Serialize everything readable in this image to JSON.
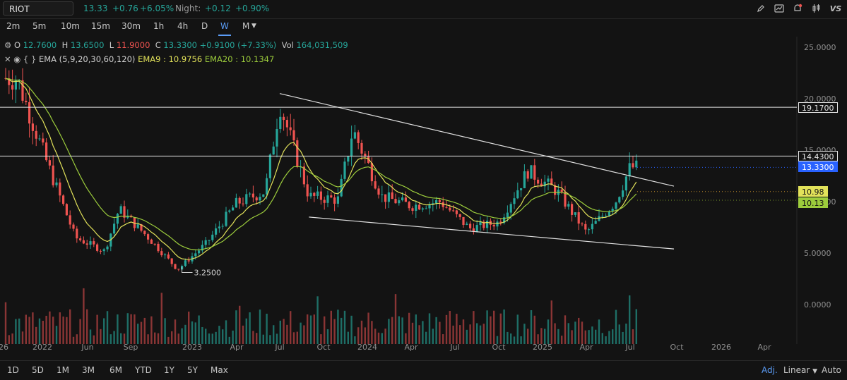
{
  "toolbar": {
    "symbol": "RIOT",
    "last": "13.33",
    "change": "+0.76",
    "change_pct": "+6.05%",
    "night_label": "Night:",
    "night_change": "+0.12",
    "night_pct": "+0.90%",
    "icons": [
      "pencil-icon",
      "chart-image-icon",
      "alert-bell-icon",
      "candles-icon",
      "vs-compare-icon"
    ],
    "vs_label": "VS"
  },
  "intervals": {
    "items": [
      "2m",
      "5m",
      "10m",
      "15m",
      "30m",
      "1h",
      "4h",
      "D",
      "W",
      "M"
    ],
    "selected": "W"
  },
  "legend": {
    "o_label": "O",
    "o": "12.7600",
    "h_label": "H",
    "h": "13.6500",
    "l_label": "L",
    "l": "11.9000",
    "c_label": "C",
    "c": "13.3300",
    "chg": "+0.9100 (+7.33%)",
    "vol_label": "Vol",
    "vol": "164,031,509",
    "ema_name": "EMA (5,9,20,30,60,120)",
    "ema9": "EMA9 : 10.9756",
    "ema20": "EMA20 : 10.1347"
  },
  "colors": {
    "up": "#26a69a",
    "down": "#ef5350",
    "ema9": "#e2e25a",
    "ema20": "#9ccc3c",
    "last_tag": "#2962ff",
    "bg": "#131313"
  },
  "price_axis": [
    "25.0000",
    "20.0000",
    "15.0000",
    "10.0000",
    "5.0000",
    "0.0000"
  ],
  "price_tags": {
    "line1": "19.1700",
    "line2": "14.4300",
    "last": "13.3300",
    "ema9": "10.98",
    "ema20": "10.13"
  },
  "low_marker": "3.2500",
  "time_axis": [
    "26",
    "2022",
    "Jun",
    "Sep",
    "2023",
    "Apr",
    "Jul",
    "Oct",
    "2024",
    "Apr",
    "Jul",
    "Oct",
    "2025",
    "Apr",
    "Jul",
    "Oct",
    "2026",
    "Apr"
  ],
  "ranges": [
    "1D",
    "5D",
    "1M",
    "3M",
    "6M",
    "YTD",
    "1Y",
    "5Y",
    "Max"
  ],
  "bottom_right": {
    "adj": "Adj.",
    "scale": "Linear",
    "auto": "Auto"
  },
  "chart_data": {
    "type": "candlestick",
    "interval": "W",
    "ylim": [
      0,
      26
    ],
    "closes_approx": [
      {
        "x": "2022-01",
        "close": 22
      },
      {
        "x": "2022-03",
        "close": 14
      },
      {
        "x": "2022-05",
        "close": 6.5
      },
      {
        "x": "2022-07",
        "close": 5.2
      },
      {
        "x": "2022-08",
        "close": 9.3
      },
      {
        "x": "2022-10",
        "close": 6.5
      },
      {
        "x": "2022-12",
        "close": 3.4
      },
      {
        "x": "2023-02",
        "close": 6
      },
      {
        "x": "2023-04",
        "close": 9.8
      },
      {
        "x": "2023-06",
        "close": 11
      },
      {
        "x": "2023-07",
        "close": 19.5
      },
      {
        "x": "2023-09",
        "close": 10.5
      },
      {
        "x": "2023-11",
        "close": 10.2
      },
      {
        "x": "2023-12",
        "close": 17
      },
      {
        "x": "2024-02",
        "close": 10.5
      },
      {
        "x": "2024-04",
        "close": 9.6
      },
      {
        "x": "2024-06",
        "close": 10
      },
      {
        "x": "2024-08",
        "close": 7.4
      },
      {
        "x": "2024-10",
        "close": 8
      },
      {
        "x": "2024-12",
        "close": 13
      },
      {
        "x": "2025-02",
        "close": 11
      },
      {
        "x": "2025-04",
        "close": 7
      },
      {
        "x": "2025-06",
        "close": 10
      },
      {
        "x": "2025-07",
        "close": 13.33
      }
    ],
    "horizontal_lines": [
      19.17,
      14.43
    ],
    "trendlines": [
      {
        "from": {
          "x": "2023-07",
          "y": 20.5
        },
        "to": {
          "x": "2025-10",
          "y": 11.5
        }
      },
      {
        "from": {
          "x": "2023-09",
          "y": 8.5
        },
        "to": {
          "x": "2025-10",
          "y": 5.4
        }
      }
    ],
    "ema9_last": 10.9756,
    "ema20_last": 10.1347,
    "low": 3.25
  }
}
